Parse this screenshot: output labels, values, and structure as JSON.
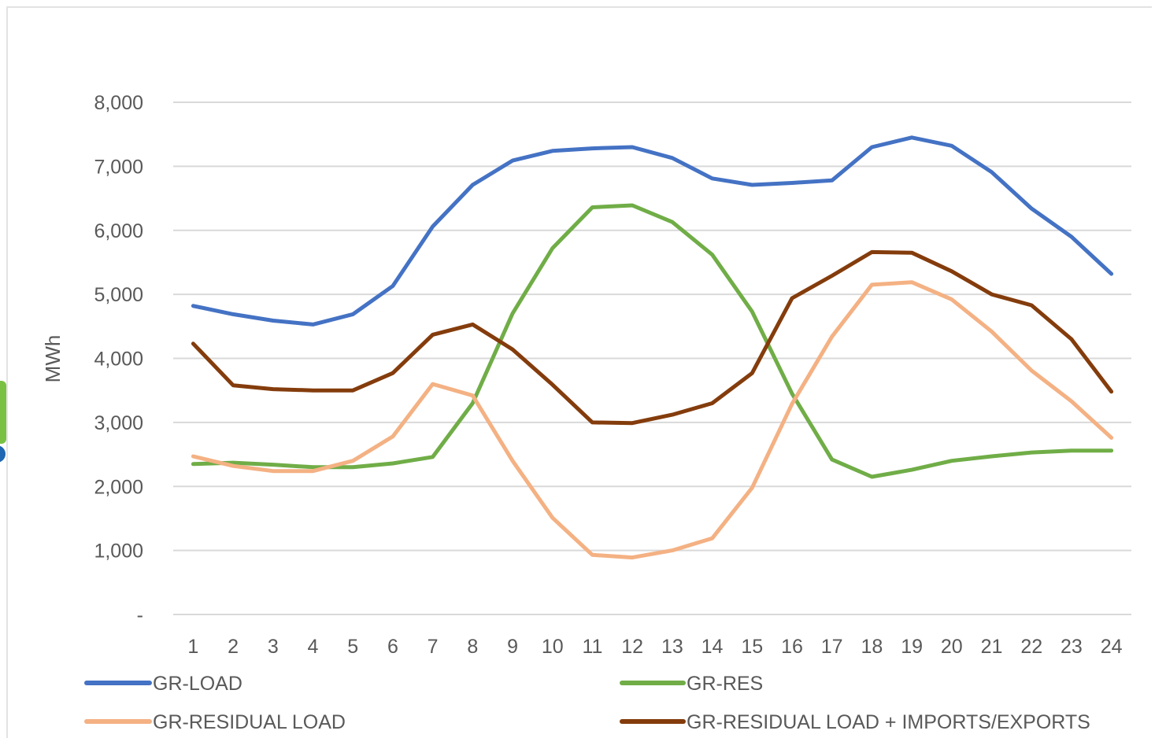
{
  "chart_data": {
    "type": "line",
    "title": "",
    "xlabel": "",
    "ylabel": "MWh",
    "x": [
      "1",
      "2",
      "3",
      "4",
      "5",
      "6",
      "7",
      "8",
      "9",
      "10",
      "11",
      "12",
      "13",
      "14",
      "15",
      "16",
      "17",
      "18",
      "19",
      "20",
      "21",
      "22",
      "23",
      "24"
    ],
    "ylim": [
      0,
      8000
    ],
    "yticks": [
      {
        "value": 0,
        "label": "-"
      },
      {
        "value": 1000,
        "label": "1,000"
      },
      {
        "value": 2000,
        "label": "2,000"
      },
      {
        "value": 3000,
        "label": "3,000"
      },
      {
        "value": 4000,
        "label": "4,000"
      },
      {
        "value": 5000,
        "label": "5,000"
      },
      {
        "value": 6000,
        "label": "6,000"
      },
      {
        "value": 7000,
        "label": "7,000"
      },
      {
        "value": 8000,
        "label": "8,000"
      }
    ],
    "grid": true,
    "legend_position": "bottom",
    "series": [
      {
        "name": "GR-LOAD",
        "color": "#4472c4",
        "values": [
          4820,
          4690,
          4590,
          4530,
          4690,
          5130,
          6060,
          6710,
          7090,
          7240,
          7280,
          7300,
          7130,
          6810,
          6710,
          6740,
          6780,
          7300,
          7450,
          7320,
          6910,
          6340,
          5900,
          5320
        ]
      },
      {
        "name": "GR-RES",
        "color": "#70ad47",
        "values": [
          2350,
          2370,
          2340,
          2300,
          2300,
          2360,
          2460,
          3300,
          4700,
          5720,
          6360,
          6390,
          6130,
          5620,
          4730,
          3450,
          2420,
          2150,
          2260,
          2400,
          2470,
          2530,
          2560,
          2560
        ]
      },
      {
        "name": "GR-RESIDUAL LOAD",
        "color": "#f4b183",
        "values": [
          2470,
          2320,
          2240,
          2240,
          2400,
          2780,
          3600,
          3420,
          2400,
          1510,
          930,
          890,
          1000,
          1190,
          1980,
          3290,
          4340,
          5150,
          5190,
          4920,
          4420,
          3810,
          3330,
          2760
        ]
      },
      {
        "name": "GR-RESIDUAL LOAD + IMPORTS/EXPORTS",
        "color": "#843c0c",
        "values": [
          4230,
          3580,
          3520,
          3500,
          3500,
          3770,
          4370,
          4530,
          4140,
          3590,
          3000,
          2990,
          3120,
          3300,
          3770,
          4940,
          5290,
          5660,
          5650,
          5360,
          5000,
          4830,
          4300,
          3480
        ]
      }
    ]
  },
  "decor": {
    "left_badge_colors": [
      "#7ac143",
      "#1f66b3"
    ]
  }
}
